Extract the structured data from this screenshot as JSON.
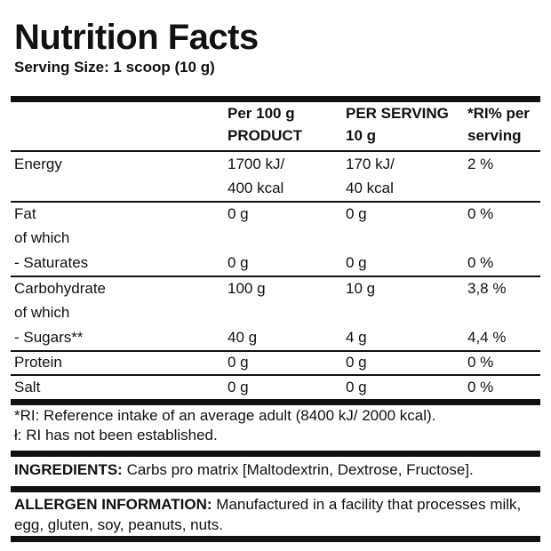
{
  "title": "Nutrition Facts",
  "serving_size": "Serving Size: 1 scoop (10 g)",
  "columns": {
    "per100_line1": "Per 100 g",
    "per100_line2": "PRODUCT",
    "perserv_line1": "PER SERVING",
    "perserv_line2": "10 g",
    "ri_line1": "*RI% per",
    "ri_line2": "serving"
  },
  "rows": {
    "energy": {
      "name": "Energy",
      "per100_line1": "1700 kJ/",
      "per100_line2": "400 kcal",
      "serv_line1": "170 kJ/",
      "serv_line2": "40 kcal",
      "ri": "2 %"
    },
    "fat": {
      "name": "Fat",
      "per100": "0 g",
      "serv": "0 g",
      "ri": "0 %"
    },
    "fat_of_which": "of which",
    "saturates": {
      "name": "- Saturates",
      "per100": "0 g",
      "serv": "0 g",
      "ri": "0 %"
    },
    "carbohydrate": {
      "name": "Carbohydrate",
      "per100": "100 g",
      "serv": "10 g",
      "ri": "3,8 %"
    },
    "carb_of_which": "of which",
    "sugars": {
      "name": "- Sugars**",
      "per100": "40 g",
      "serv": "4 g",
      "ri": "4,4 %"
    },
    "protein": {
      "name": "Protein",
      "per100": "0 g",
      "serv": "0 g",
      "ri": "0 %"
    },
    "salt": {
      "name": "Salt",
      "per100": "0 g",
      "serv": "0 g",
      "ri": "0 %"
    }
  },
  "footnotes": {
    "ri_note": "*RI: Reference intake of an average adult (8400 kJ/ 2000 kcal).",
    "not_established": "ł: RI has not been established."
  },
  "ingredients": {
    "label": "INGREDIENTS:",
    "text": " Carbs pro matrix [Maltodextrin, Dextrose, Fructose]."
  },
  "allergen": {
    "label": "ALLERGEN INFORMATION:",
    "text": "  Manufactured in a facility that processes milk, egg, gluten, soy, peanuts, nuts."
  }
}
